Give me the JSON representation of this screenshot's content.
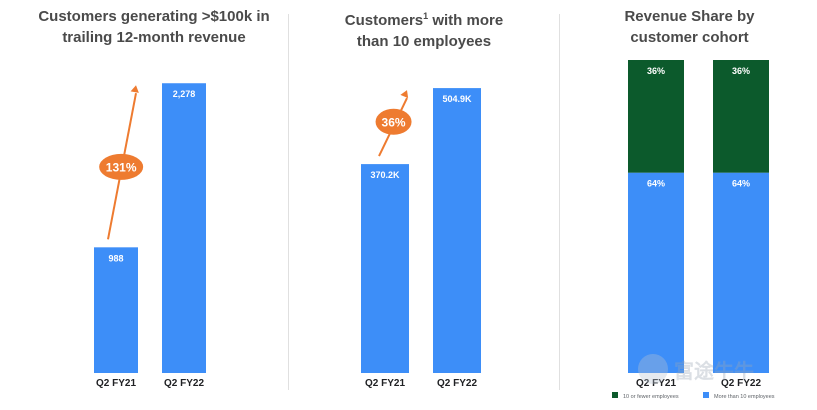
{
  "chart_data": [
    {
      "type": "bar",
      "title": "Customers generating >$100k in trailing 12-month revenue",
      "categories": [
        "Q2 FY21",
        "Q2 FY22"
      ],
      "values": [
        988,
        2278
      ],
      "value_labels": [
        "988",
        "2,278"
      ],
      "growth_label": "131%",
      "ylim": [
        0,
        2500
      ],
      "bar_color": "#3d8ef8",
      "arrow_color": "#ee7b30"
    },
    {
      "type": "bar",
      "title": "Customers",
      "title_superscript": "1",
      "title_suffix": "with more than 10 employees",
      "categories": [
        "Q2 FY21",
        "Q2 FY22"
      ],
      "values": [
        370.2,
        504.9
      ],
      "value_labels": [
        "370.2K",
        "504.9K"
      ],
      "growth_label": "36%",
      "ylim": [
        0,
        560
      ],
      "bar_color": "#3d8ef8",
      "arrow_color": "#ee7b30"
    },
    {
      "type": "bar",
      "stacked": true,
      "title": "Revenue Share by customer cohort",
      "categories": [
        "Q2 FY21",
        "Q2 FY22"
      ],
      "series": [
        {
          "name": "More than 10 employees",
          "values": [
            64,
            64
          ],
          "labels": [
            "64%",
            "64%"
          ],
          "color": "#3d8ef8"
        },
        {
          "name": "10 or fewer employees",
          "values": [
            36,
            36
          ],
          "labels": [
            "36%",
            "36%"
          ],
          "color": "#0c5a2c"
        }
      ],
      "ylim": [
        0,
        100
      ],
      "legend": "bottom"
    }
  ],
  "watermark": "富途牛牛"
}
